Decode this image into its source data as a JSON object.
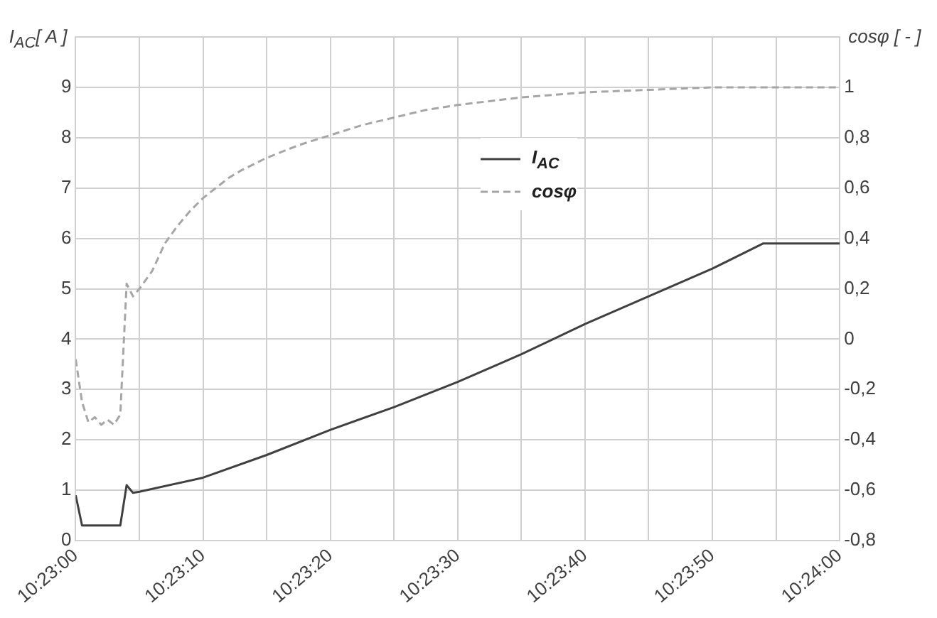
{
  "chart_data": {
    "type": "line",
    "ylabel": "I$_{AC}$[ A ]",
    "y2label": "cosφ [ - ]",
    "xlim": [
      10.383333,
      10.4
    ],
    "xticks": [
      {
        "value": 10.383333,
        "label": "10:23:00"
      },
      {
        "value": 10.384722,
        "label": null
      },
      {
        "value": 10.386111,
        "label": "10:23:10"
      },
      {
        "value": 10.3875,
        "label": null
      },
      {
        "value": 10.388889,
        "label": "10:23:20"
      },
      {
        "value": 10.390278,
        "label": null
      },
      {
        "value": 10.391667,
        "label": "10:23:30"
      },
      {
        "value": 10.393056,
        "label": null
      },
      {
        "value": 10.394444,
        "label": "10:23:40"
      },
      {
        "value": 10.395833,
        "label": null
      },
      {
        "value": 10.397222,
        "label": "10:23:50"
      },
      {
        "value": 10.398611,
        "label": null
      },
      {
        "value": 10.4,
        "label": "10:24:00"
      }
    ],
    "ylim": [
      0,
      10
    ],
    "yticks": [
      0,
      1,
      2,
      3,
      4,
      5,
      6,
      7,
      8,
      9,
      {
        "value": 10,
        "label": null
      }
    ],
    "y2lim": [
      -0.8,
      1.2
    ],
    "y2ticks": [
      {
        "value": -0.8,
        "label": "-0,8"
      },
      {
        "value": -0.6,
        "label": "-0,6"
      },
      {
        "value": -0.4,
        "label": "-0,4"
      },
      {
        "value": -0.2,
        "label": "-0,2"
      },
      0,
      {
        "value": 0.2,
        "label": "0,2"
      },
      {
        "value": 0.4,
        "label": "0,4"
      },
      {
        "value": 0.6,
        "label": "0,6"
      },
      {
        "value": 0.8,
        "label": "0,8"
      },
      1,
      {
        "value": 1.2,
        "label": null
      }
    ],
    "grid": true,
    "legend": "top right",
    "marker": "none",
    "series": [
      {
        "name": "I$_{AC}$",
        "color": "#404040",
        "line_style": "solid",
        "x": [
          10.383333,
          10.383472,
          10.384306,
          10.384444,
          10.384583,
          10.384722,
          10.386111,
          10.3875,
          10.388889,
          10.390278,
          10.391667,
          10.393056,
          10.394444,
          10.395833,
          10.397222,
          10.398333,
          10.4
        ],
        "values": [
          0.9,
          0.3,
          0.3,
          1.1,
          0.95,
          0.97,
          1.25,
          1.7,
          2.2,
          2.65,
          3.15,
          3.7,
          4.3,
          4.85,
          5.4,
          5.9,
          5.9
        ]
      },
      {
        "name": "cosφ",
        "color": "#a6a6a6",
        "line_style": "dashed",
        "axis": "y2",
        "x": [
          10.383333,
          10.383472,
          10.383611,
          10.38375,
          10.383889,
          10.384028,
          10.384167,
          10.384306,
          10.384444,
          10.384583,
          10.384722,
          10.385,
          10.385278,
          10.385556,
          10.385833,
          10.386111,
          10.386389,
          10.386667,
          10.386944,
          10.3875,
          10.388194,
          10.388889,
          10.389583,
          10.390278,
          10.390972,
          10.391667,
          10.393056,
          10.394444,
          10.395833,
          10.397222,
          10.4
        ],
        "values": [
          -0.08,
          -0.25,
          -0.33,
          -0.31,
          -0.34,
          -0.32,
          -0.34,
          -0.3,
          0.22,
          0.17,
          0.2,
          0.27,
          0.38,
          0.45,
          0.51,
          0.56,
          0.6,
          0.64,
          0.67,
          0.72,
          0.77,
          0.81,
          0.85,
          0.88,
          0.91,
          0.93,
          0.96,
          0.98,
          0.99,
          1.0,
          1.0
        ]
      }
    ]
  }
}
